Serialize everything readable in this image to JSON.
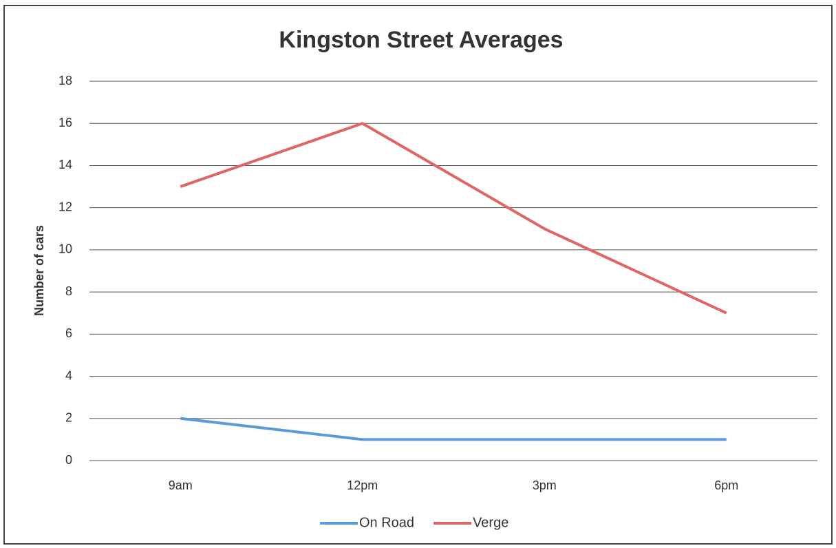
{
  "chart_data": {
    "type": "line",
    "title": "Kingston Street Averages",
    "y_label": "Number of cars",
    "categories": [
      "9am",
      "12pm",
      "3pm",
      "6pm"
    ],
    "series": [
      {
        "name": "On Road",
        "color": "#5b9bd5",
        "values": [
          2,
          1,
          1,
          1
        ]
      },
      {
        "name": "Verge",
        "color": "#e06666",
        "values": [
          13,
          16,
          11,
          7
        ]
      }
    ],
    "ylim": [
      0,
      18
    ],
    "yticks": [
      0,
      2,
      4,
      6,
      8,
      10,
      12,
      14,
      16,
      18
    ],
    "grid": true,
    "legend": "bottom"
  }
}
